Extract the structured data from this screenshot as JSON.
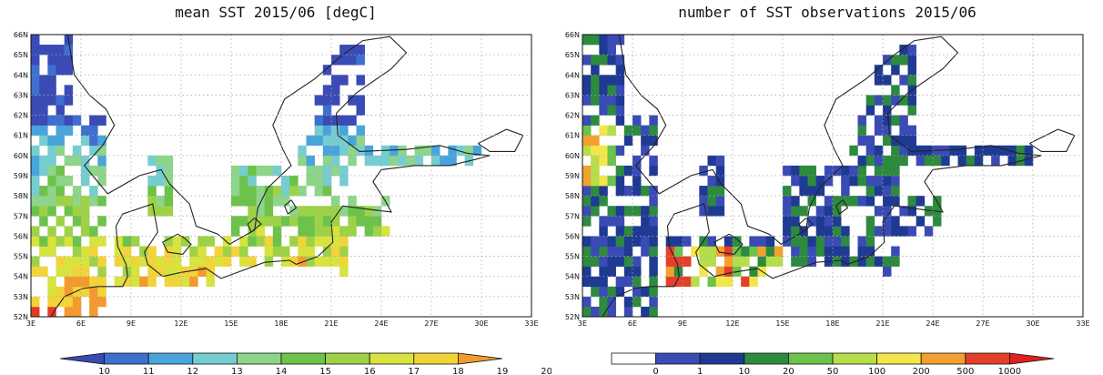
{
  "panels": [
    {
      "title": "mean SST 2015/06 [degC]",
      "colorbar": {
        "labels": [
          "10",
          "11",
          "12",
          "13",
          "14",
          "15",
          "16",
          "17",
          "18",
          "19",
          "20"
        ],
        "colors": [
          "#3a4bb5",
          "#3f6fcf",
          "#4aa4dc",
          "#76cdd0",
          "#8ed48a",
          "#6cc24a",
          "#9ed246",
          "#d7e33f",
          "#f2d43a",
          "#f29a2e",
          "#e33a26"
        ]
      }
    },
    {
      "title": "number of SST observations 2015/06",
      "colorbar": {
        "labels": [
          "0",
          "1",
          "10",
          "20",
          "50",
          "100",
          "200",
          "500",
          "1000"
        ],
        "colors": [
          "#ffffff",
          "#3a4bb5",
          "#1f3a93",
          "#2d8a3e",
          "#6cc24a",
          "#b7dd4a",
          "#f3e64a",
          "#f2a12e",
          "#e3402a",
          "#e02020"
        ]
      }
    }
  ],
  "axes": {
    "y_ticks": [
      "52N",
      "53N",
      "54N",
      "55N",
      "56N",
      "57N",
      "58N",
      "59N",
      "60N",
      "61N",
      "62N",
      "63N",
      "64N",
      "65N",
      "66N"
    ],
    "x_ticks": [
      "3E",
      "6E",
      "9E",
      "12E",
      "15E",
      "18E",
      "21E",
      "24E",
      "27E",
      "30E",
      "33E"
    ]
  }
}
